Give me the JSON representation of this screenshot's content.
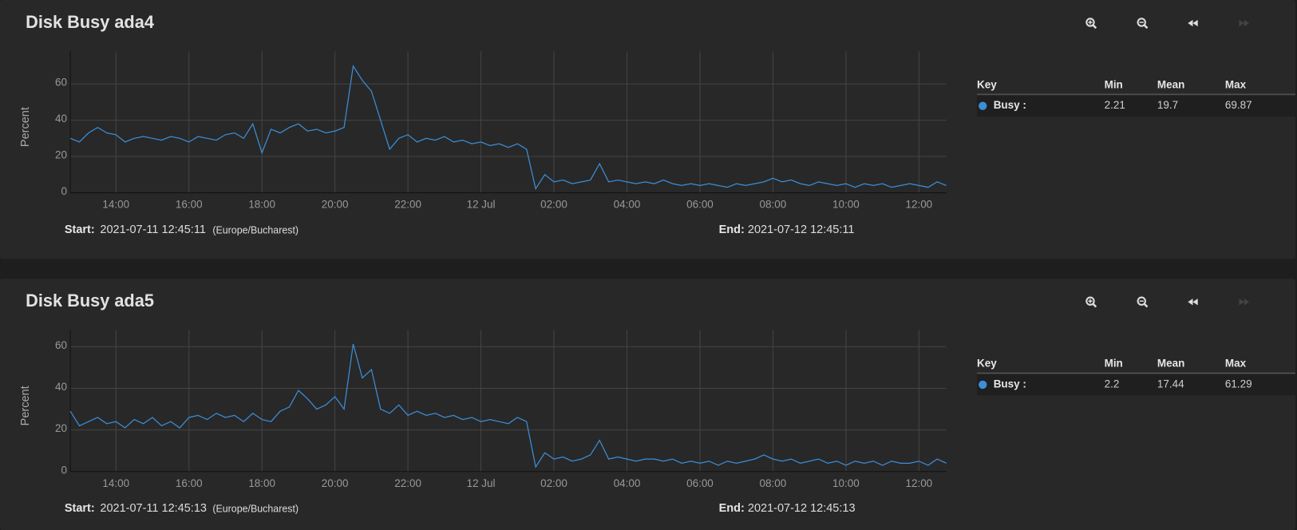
{
  "chart_data": [
    {
      "type": "line",
      "title": "Disk Busy ada4",
      "y_label": "Percent",
      "x": [
        12.75,
        13,
        13.25,
        13.5,
        13.75,
        14,
        14.25,
        14.5,
        14.75,
        15,
        15.25,
        15.5,
        15.75,
        16,
        16.25,
        16.5,
        16.75,
        17,
        17.25,
        17.5,
        17.75,
        18,
        18.25,
        18.5,
        18.75,
        19,
        19.25,
        19.5,
        19.75,
        20,
        20.25,
        20.5,
        20.75,
        21,
        21.25,
        21.5,
        21.75,
        22,
        22.25,
        22.5,
        22.75,
        23,
        23.25,
        23.5,
        23.75,
        24,
        24.25,
        24.5,
        24.75,
        25,
        25.25,
        25.5,
        25.75,
        26,
        26.25,
        26.5,
        26.75,
        27,
        27.25,
        27.5,
        27.75,
        28,
        28.25,
        28.5,
        28.75,
        29,
        29.25,
        29.5,
        29.75,
        30,
        30.25,
        30.5,
        30.75,
        31,
        31.25,
        31.5,
        31.75,
        32,
        32.25,
        32.5,
        32.75,
        33,
        33.25,
        33.5,
        33.75,
        34,
        34.25,
        34.5,
        34.75,
        35,
        35.25,
        35.5,
        35.75,
        36,
        36.25,
        36.5,
        36.75
      ],
      "xlim": [
        12.75,
        36.75
      ],
      "xticks": [
        {
          "value": 14,
          "label": "14:00"
        },
        {
          "value": 16,
          "label": "16:00"
        },
        {
          "value": 18,
          "label": "18:00"
        },
        {
          "value": 20,
          "label": "20:00"
        },
        {
          "value": 22,
          "label": "22:00"
        },
        {
          "value": 24,
          "label": "12 Jul"
        },
        {
          "value": 26,
          "label": "02:00"
        },
        {
          "value": 28,
          "label": "04:00"
        },
        {
          "value": 30,
          "label": "06:00"
        },
        {
          "value": 32,
          "label": "08:00"
        },
        {
          "value": 34,
          "label": "10:00"
        },
        {
          "value": 36,
          "label": "12:00"
        }
      ],
      "ylim": [
        0,
        78
      ],
      "yticks": [
        0,
        20,
        40,
        60
      ],
      "grid": true,
      "series": [
        {
          "name": "Busy :",
          "color": "#3b8ed8",
          "min": 2.21,
          "mean": 19.7,
          "max": 69.87,
          "values": [
            30,
            28,
            33,
            36,
            33,
            32,
            28,
            30,
            31,
            30,
            29,
            31,
            30,
            28,
            31,
            30,
            29,
            32,
            33,
            30,
            38,
            22,
            35,
            33,
            36,
            38,
            34,
            35,
            33,
            34,
            36,
            69.87,
            62,
            56,
            40,
            24,
            30,
            32,
            28,
            30,
            29,
            31,
            28,
            29,
            27,
            28,
            26,
            27,
            25,
            27,
            24,
            2.21,
            10,
            6,
            7,
            5,
            6,
            7,
            16,
            6,
            7,
            6,
            5,
            6,
            5,
            7,
            5,
            4,
            5,
            4,
            5,
            4,
            3,
            5,
            4,
            5,
            6,
            8,
            6,
            7,
            5,
            4,
            6,
            5,
            4,
            5,
            3,
            5,
            4,
            5,
            3,
            4,
            5,
            4,
            3,
            6,
            4
          ]
        }
      ],
      "legend_headers": [
        "Key",
        "Min",
        "Mean",
        "Max"
      ],
      "start_label": "Start:",
      "start": "2021-07-11 12:45:11",
      "timezone": "(Europe/Bucharest)",
      "end_label": "End:",
      "end": "2021-07-12 12:45:11"
    },
    {
      "type": "line",
      "title": "Disk Busy ada5",
      "y_label": "Percent",
      "x": [
        12.75,
        13,
        13.25,
        13.5,
        13.75,
        14,
        14.25,
        14.5,
        14.75,
        15,
        15.25,
        15.5,
        15.75,
        16,
        16.25,
        16.5,
        16.75,
        17,
        17.25,
        17.5,
        17.75,
        18,
        18.25,
        18.5,
        18.75,
        19,
        19.25,
        19.5,
        19.75,
        20,
        20.25,
        20.5,
        20.75,
        21,
        21.25,
        21.5,
        21.75,
        22,
        22.25,
        22.5,
        22.75,
        23,
        23.25,
        23.5,
        23.75,
        24,
        24.25,
        24.5,
        24.75,
        25,
        25.25,
        25.5,
        25.75,
        26,
        26.25,
        26.5,
        26.75,
        27,
        27.25,
        27.5,
        27.75,
        28,
        28.25,
        28.5,
        28.75,
        29,
        29.25,
        29.5,
        29.75,
        30,
        30.25,
        30.5,
        30.75,
        31,
        31.25,
        31.5,
        31.75,
        32,
        32.25,
        32.5,
        32.75,
        33,
        33.25,
        33.5,
        33.75,
        34,
        34.25,
        34.5,
        34.75,
        35,
        35.25,
        35.5,
        35.75,
        36,
        36.25,
        36.5,
        36.75
      ],
      "xlim": [
        12.75,
        36.75
      ],
      "xticks": [
        {
          "value": 14,
          "label": "14:00"
        },
        {
          "value": 16,
          "label": "16:00"
        },
        {
          "value": 18,
          "label": "18:00"
        },
        {
          "value": 20,
          "label": "20:00"
        },
        {
          "value": 22,
          "label": "22:00"
        },
        {
          "value": 24,
          "label": "12 Jul"
        },
        {
          "value": 26,
          "label": "02:00"
        },
        {
          "value": 28,
          "label": "04:00"
        },
        {
          "value": 30,
          "label": "06:00"
        },
        {
          "value": 32,
          "label": "08:00"
        },
        {
          "value": 34,
          "label": "10:00"
        },
        {
          "value": 36,
          "label": "12:00"
        }
      ],
      "ylim": [
        0,
        68
      ],
      "yticks": [
        0,
        20,
        40,
        60
      ],
      "grid": true,
      "series": [
        {
          "name": "Busy :",
          "color": "#3b8ed8",
          "min": 2.2,
          "mean": 17.44,
          "max": 61.29,
          "values": [
            29,
            22,
            24,
            26,
            23,
            24,
            21,
            25,
            23,
            26,
            22,
            24,
            21,
            26,
            27,
            25,
            28,
            26,
            27,
            24,
            28,
            25,
            24,
            29,
            31,
            39,
            35,
            30,
            32,
            36,
            30,
            61.29,
            45,
            49,
            30,
            28,
            32,
            27,
            29,
            27,
            28,
            26,
            27,
            25,
            26,
            24,
            25,
            24,
            23,
            26,
            24,
            2.2,
            9,
            6,
            7,
            5,
            6,
            8,
            15,
            6,
            7,
            6,
            5,
            6,
            6,
            5,
            6,
            4,
            5,
            4,
            5,
            3,
            5,
            4,
            5,
            6,
            8,
            6,
            5,
            6,
            4,
            5,
            6,
            4,
            5,
            3,
            5,
            4,
            5,
            3,
            5,
            4,
            4,
            5,
            3,
            6,
            4
          ]
        }
      ],
      "legend_headers": [
        "Key",
        "Min",
        "Mean",
        "Max"
      ],
      "start_label": "Start:",
      "start": "2021-07-11 12:45:13",
      "timezone": "(Europe/Bucharest)",
      "end_label": "End:",
      "end": "2021-07-12 12:45:13"
    }
  ]
}
